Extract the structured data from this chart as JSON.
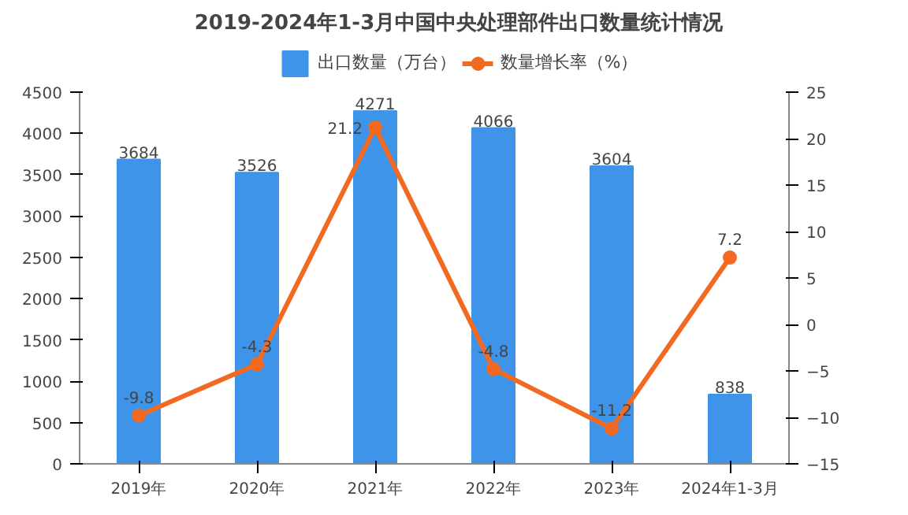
{
  "chart_data": {
    "type": "bar",
    "title": "2019-2024年1-3月中国中央处理部件出口数量统计情况",
    "categories": [
      "2019年",
      "2020年",
      "2021年",
      "2022年",
      "2023年",
      "2024年1-3月"
    ],
    "series": [
      {
        "name": "出口数量（万台）",
        "color": "#3d94e8",
        "values": [
          3684,
          3526,
          4271,
          4066,
          3604,
          838
        ]
      },
      {
        "name": "数量增长率（%）",
        "type": "line",
        "axis": "y2",
        "color": "#f26a22",
        "values": [
          -9.8,
          -4.3,
          21.2,
          -4.8,
          -11.2,
          7.2
        ]
      }
    ],
    "ylim": [
      0,
      4500
    ],
    "yticks": [
      0,
      500,
      1000,
      1500,
      2000,
      2500,
      3000,
      3500,
      4000,
      4500
    ],
    "y2lim": [
      -15,
      25
    ],
    "y2ticks": [
      -15,
      -10,
      -5,
      0,
      5,
      10,
      15,
      20,
      25
    ],
    "data_labels": true,
    "legend": "top",
    "marker": "circle",
    "grid": false
  }
}
